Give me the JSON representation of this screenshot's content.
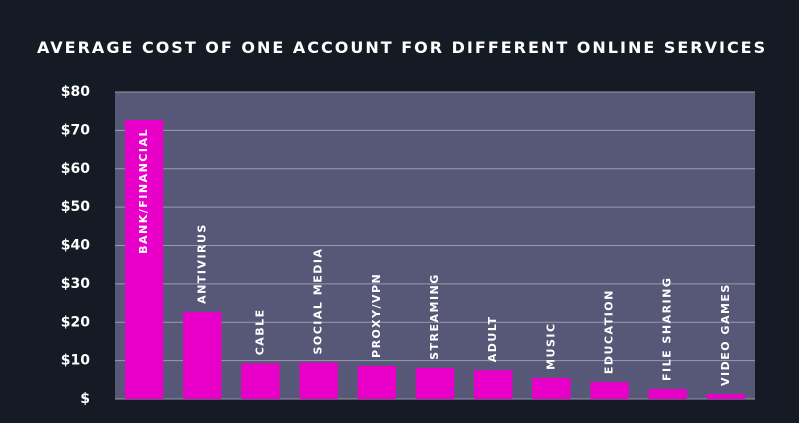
{
  "chart_data": {
    "type": "bar",
    "title": "AVERAGE COST OF ONE ACCOUNT FOR DIFFERENT ONLINE SERVICES",
    "categories": [
      "BANK/FINANCIAL",
      "ANTIVIRUS",
      "CABLE",
      "SOCIAL MEDIA",
      "PROXY/VPN",
      "STREAMING",
      "ADULT",
      "MUSIC",
      "EDUCATION",
      "FILE SHARING",
      "VIDEO GAMES"
    ],
    "values": [
      72.7,
      22.7,
      9.3,
      9.5,
      8.6,
      8.1,
      7.5,
      5.5,
      4.4,
      2.6,
      1.3
    ],
    "color": "#e800c8",
    "ylim": [
      0,
      80
    ],
    "yticks": [
      {
        "value": 0,
        "label": "$"
      },
      {
        "value": 10,
        "label": "$10"
      },
      {
        "value": 20,
        "label": "$20"
      },
      {
        "value": 30,
        "label": "$30"
      },
      {
        "value": 40,
        "label": "$40"
      },
      {
        "value": 50,
        "label": "$50"
      },
      {
        "value": 60,
        "label": "$60"
      },
      {
        "value": 70,
        "label": "$70"
      },
      {
        "value": 80,
        "label": "$80"
      }
    ],
    "grid": true
  }
}
